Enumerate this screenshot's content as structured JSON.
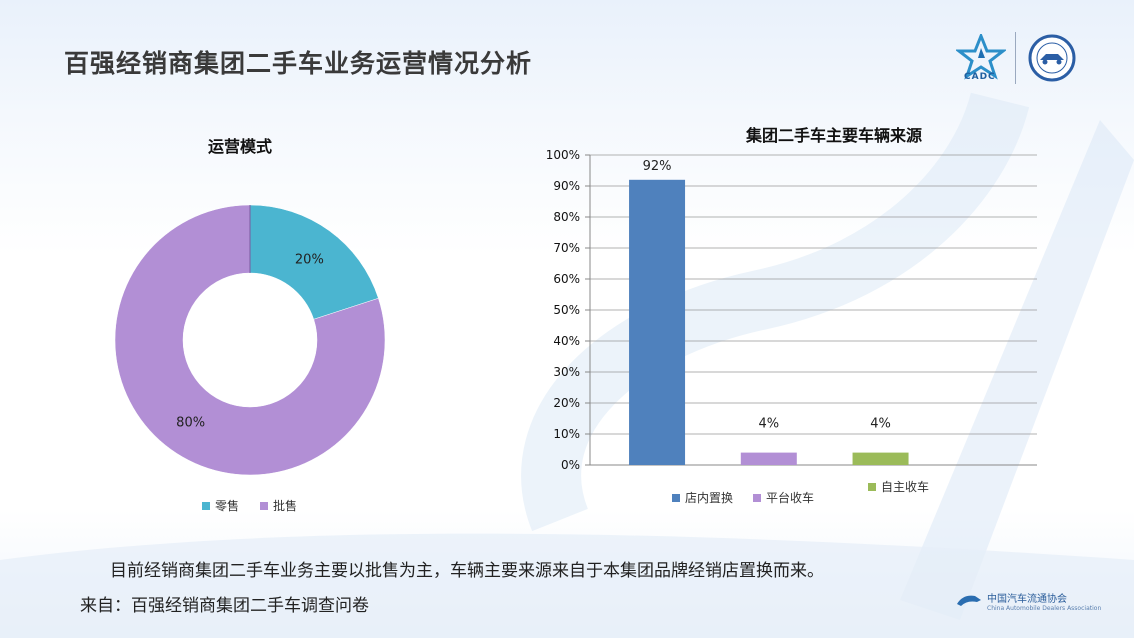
{
  "page": {
    "title": "百强经销商集团二手车业务运营情况分析",
    "summary": "目前经销商集团二手车业务主要以批售为主，车辆主要来源来自于本集团品牌经销店置换而来。",
    "source": "来自：百强经销商集团二手车调查问卷",
    "cadc_logo_text": "CADC",
    "footer_logo_text": "中国汽车流通协会",
    "footer_logo_en": "China Automobile Dealers Association"
  },
  "colors": {
    "title": "#3a3a3a",
    "retail": "#4bb5d0",
    "wholesale": "#b28fd5",
    "bar_blue": "#4f81bd",
    "bar_purple": "#b28fd5",
    "bar_green": "#9bbb59"
  },
  "chart_data": [
    {
      "type": "pie",
      "variant": "donut",
      "title": "运营模式",
      "labels": [
        "零售",
        "批售"
      ],
      "values": [
        20,
        80
      ],
      "data_labels": [
        "20%",
        "80%"
      ],
      "legend": "bottom"
    },
    {
      "type": "bar",
      "title": "集团二手车主要车辆来源",
      "categories": [
        "店内置换",
        "平台收车",
        "自主收车"
      ],
      "values": [
        92,
        4,
        4
      ],
      "data_labels": [
        "92%",
        "4%",
        "4%"
      ],
      "ylim": [
        0,
        100
      ],
      "yticks": [
        "0%",
        "10%",
        "20%",
        "30%",
        "40%",
        "50%",
        "60%",
        "70%",
        "80%",
        "90%",
        "100%"
      ],
      "grid": true,
      "legend": "bottom"
    }
  ]
}
